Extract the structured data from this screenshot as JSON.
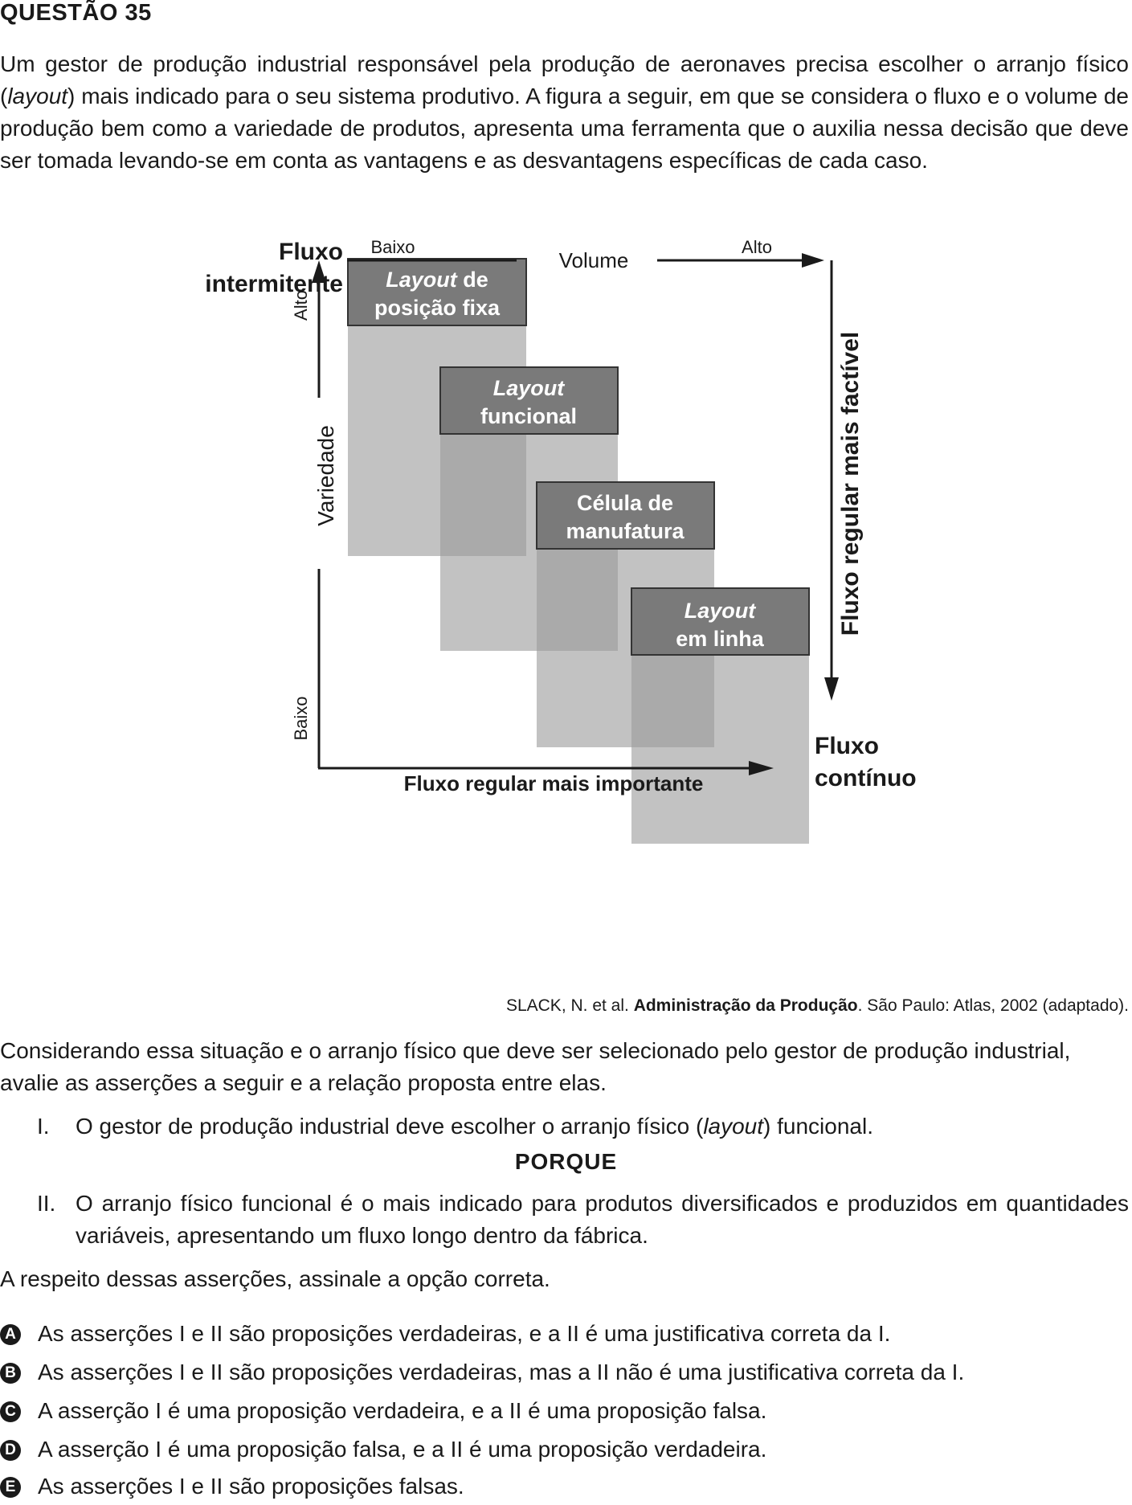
{
  "question": {
    "title": "QUESTÃO 35",
    "intro": "Um gestor de produção industrial responsável pela produção de aeronaves precisa escolher o arranjo físico (layout) mais indicado para o seu sistema produtivo. A figura a seguir, em que se considera o fluxo e o volume de produção bem como a variedade de produtos, apresenta uma ferramenta que o auxilia nessa decisão que deve ser tomada levando-se em conta as vantagens e as desvantagens específicas de cada caso.",
    "intro_italic_word": "layout"
  },
  "figure": {
    "top_left_label_line1": "Fluxo",
    "top_left_label_line2": "intermitente",
    "volume_low": "Baixo",
    "volume_label": "Volume",
    "volume_high": "Alto",
    "variety_high": "Alto",
    "variety_label": "Variedade",
    "variety_low": "Baixo",
    "right_axis_label": "Fluxo regular mais factível",
    "bottom_axis_label": "Fluxo regular mais importante",
    "bottom_right_label_line1": "Fluxo",
    "bottom_right_label_line2": "contínuo",
    "boxes": [
      {
        "line1_italic": "Layout",
        "line1_rest": " de",
        "line2": "posição fixa"
      },
      {
        "line1_italic": "Layout",
        "line1_rest": "",
        "line2": "funcional"
      },
      {
        "line1_italic": "",
        "line1_rest": "Célula de",
        "line2": "manufatura"
      },
      {
        "line1_italic": "Layout",
        "line1_rest": "",
        "line2": "em linha"
      }
    ]
  },
  "citation": {
    "author": "SLACK, N. et al. ",
    "book": "Administração da Produção",
    "rest": ". São Paulo: Atlas, 2002 (adaptado)."
  },
  "consider": "Considerando essa situação e o arranjo físico que deve ser selecionado pelo gestor de produção industrial, avalie as asserções a seguir e a relação proposta entre elas.",
  "assertions": [
    {
      "num": "I.",
      "before": "O gestor de produção industrial deve escolher o arranjo físico (",
      "italic": "layout",
      "after": ") funcional."
    },
    {
      "num": "II.",
      "text": "O arranjo físico funcional é o mais indicado para produtos diversificados e produzidos em quantidades variáveis, apresentando um fluxo longo dentro da fábrica."
    }
  ],
  "porque": "PORQUE",
  "respeito": "A respeito dessas asserções, assinale a opção correta.",
  "options": [
    {
      "letter": "A",
      "text": "As asserções I e II são proposições verdadeiras, e a II é uma justificativa correta da I."
    },
    {
      "letter": "B",
      "text": "As asserções I e II são proposições verdadeiras, mas a II não é uma justificativa correta da I."
    },
    {
      "letter": "C",
      "text": "A asserção I é uma proposição verdadeira, e a II é uma proposição falsa."
    },
    {
      "letter": "D",
      "text": "A asserção I é uma proposição falsa, e a II é uma proposição verdadeira."
    },
    {
      "letter": "E",
      "text": "As asserções I e II são proposições falsas."
    }
  ]
}
